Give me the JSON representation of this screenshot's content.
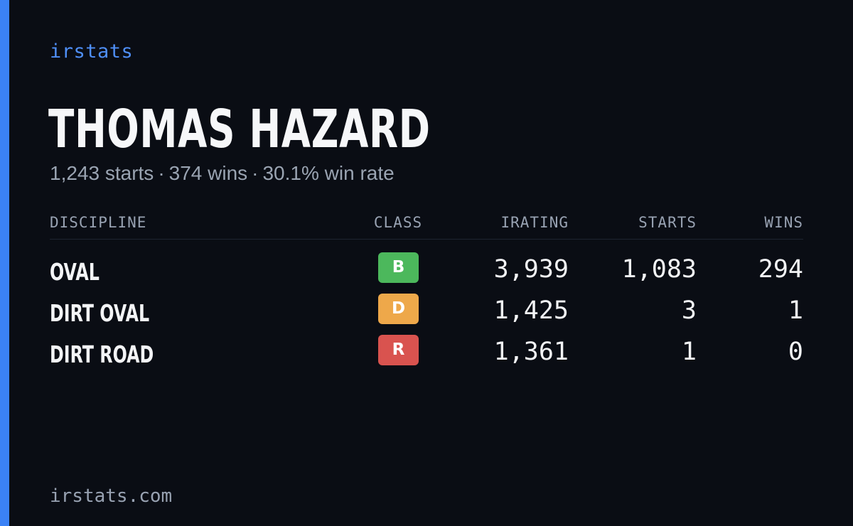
{
  "brand": "irstats",
  "player": {
    "name": "THOMAS HAZARD",
    "starts": "1,243 starts",
    "wins": "374 wins",
    "win_rate": "30.1% win rate",
    "separator": "·"
  },
  "table": {
    "headers": {
      "discipline": "DISCIPLINE",
      "class": "CLASS",
      "irating": "IRATING",
      "starts": "STARTS",
      "wins": "WINS"
    },
    "rows": [
      {
        "discipline": "OVAL",
        "class": "B",
        "class_color": "#4cb85c",
        "irating": "3,939",
        "starts": "1,083",
        "wins": "294"
      },
      {
        "discipline": "DIRT OVAL",
        "class": "D",
        "class_color": "#eea84a",
        "irating": "1,425",
        "starts": "3",
        "wins": "1"
      },
      {
        "discipline": "DIRT ROAD",
        "class": "R",
        "class_color": "#d9534f",
        "irating": "1,361",
        "starts": "1",
        "wins": "0"
      }
    ]
  },
  "footer": {
    "domain": "irstats.com"
  },
  "colors": {
    "background": "#0a0d14",
    "accent": "#3b82f6",
    "brand_text": "#4f8ff7"
  }
}
